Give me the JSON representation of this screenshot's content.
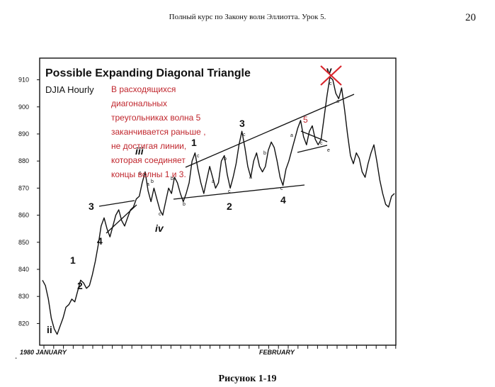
{
  "page": {
    "running_header": "Полный курс по Закону волн Эллиотта. Урок 5.",
    "page_number": "20",
    "caption": "Рисунок 1-19",
    "stray_mark": "."
  },
  "figure": {
    "title": "Possible Expanding Diagonal Triangle",
    "subtitle": "DJIA Hourly",
    "annotation_lines": [
      "В расходящихся",
      "диагональных",
      "треугольниках волна 5",
      "заканчивается раньше ,",
      "не достигая линии,",
      "которая соединяет",
      "концы волны 1 и 3."
    ],
    "annotation_color": "#c0262d",
    "cross_color": "#d9262d",
    "wave_labels": [
      {
        "id": "ii",
        "text": "ii"
      },
      {
        "id": "w1",
        "text": "1"
      },
      {
        "id": "w2",
        "text": "2"
      },
      {
        "id": "w3",
        "text": "3"
      },
      {
        "id": "w4",
        "text": "4"
      },
      {
        "id": "iii",
        "text": "iii"
      },
      {
        "id": "iv",
        "text": "iv"
      },
      {
        "id": "tri1",
        "text": "1"
      },
      {
        "id": "tri2",
        "text": "2"
      },
      {
        "id": "tri3",
        "text": "3"
      },
      {
        "id": "tri4",
        "text": "4"
      },
      {
        "id": "tri5",
        "text": "5"
      },
      {
        "id": "v",
        "text": "v"
      }
    ]
  },
  "chart_data": {
    "type": "line",
    "title": "Possible Expanding Diagonal Triangle",
    "subtitle": "DJIA Hourly",
    "xlabel": "",
    "ylabel": "",
    "x_ticks": [
      "1980 JANUARY",
      "FEBRUARY"
    ],
    "y_ticks": [
      820,
      830,
      840,
      850,
      860,
      870,
      880,
      890,
      900,
      910
    ],
    "ylim": [
      812,
      918
    ],
    "grid": false,
    "series": [
      {
        "values": [
          836,
          834,
          829,
          822,
          818,
          816,
          819,
          822,
          826,
          827,
          829,
          828,
          832,
          836,
          835,
          833,
          834,
          838,
          843,
          849,
          856,
          859,
          855,
          852,
          856,
          860,
          862,
          858,
          856,
          859,
          862,
          863,
          866,
          867,
          872,
          876,
          869,
          865,
          870,
          866,
          862,
          860,
          865,
          870,
          868,
          874,
          872,
          868,
          865,
          868,
          872,
          880,
          883,
          877,
          872,
          868,
          873,
          878,
          874,
          870,
          872,
          880,
          882,
          875,
          870,
          874,
          879,
          886,
          891,
          885,
          878,
          874,
          880,
          883,
          878,
          876,
          878,
          884,
          887,
          885,
          880,
          874,
          871,
          877,
          880,
          884,
          888,
          892,
          895,
          889,
          886,
          891,
          893,
          888,
          886,
          888,
          896,
          904,
          911,
          910,
          905,
          903,
          907,
          899,
          890,
          882,
          879,
          883,
          881,
          876,
          874,
          879,
          883,
          886,
          880,
          873,
          868,
          864,
          863,
          867,
          868
        ]
      }
    ]
  }
}
